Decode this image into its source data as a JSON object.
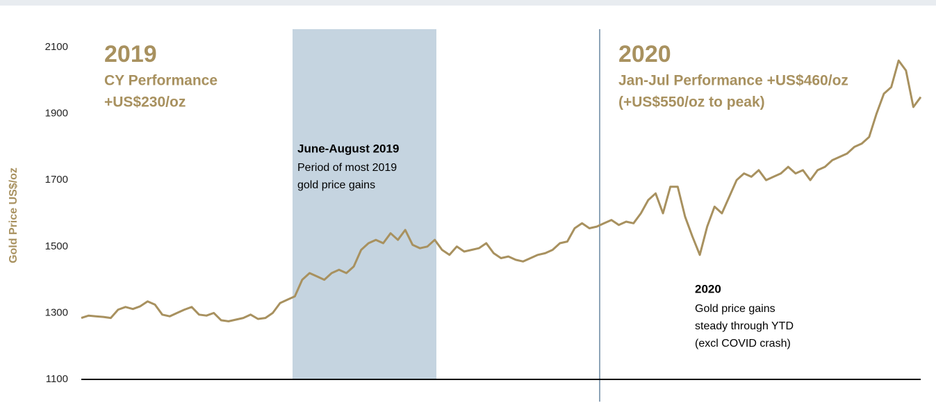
{
  "chart_data": {
    "type": "line",
    "ylabel": "Gold Price US$/oz",
    "ylim": [
      1100,
      2100
    ],
    "yticks": [
      1100,
      1300,
      1500,
      1700,
      1900,
      2100
    ],
    "color": "#a8915f",
    "values": [
      1285,
      1292,
      1290,
      1288,
      1285,
      1310,
      1318,
      1312,
      1320,
      1335,
      1325,
      1295,
      1290,
      1300,
      1310,
      1318,
      1295,
      1292,
      1300,
      1278,
      1275,
      1280,
      1285,
      1295,
      1282,
      1285,
      1300,
      1330,
      1340,
      1350,
      1400,
      1420,
      1410,
      1400,
      1420,
      1430,
      1420,
      1440,
      1490,
      1510,
      1520,
      1510,
      1540,
      1520,
      1550,
      1505,
      1495,
      1500,
      1520,
      1490,
      1475,
      1500,
      1485,
      1490,
      1495,
      1510,
      1480,
      1465,
      1470,
      1460,
      1455,
      1465,
      1475,
      1480,
      1490,
      1510,
      1515,
      1555,
      1570,
      1555,
      1560,
      1570,
      1580,
      1565,
      1575,
      1570,
      1600,
      1640,
      1660,
      1600,
      1680,
      1680,
      1590,
      1530,
      1475,
      1560,
      1620,
      1600,
      1650,
      1700,
      1720,
      1710,
      1730,
      1700,
      1710,
      1720,
      1740,
      1720,
      1730,
      1700,
      1730,
      1740,
      1760,
      1770,
      1780,
      1800,
      1810,
      1830,
      1900,
      1960,
      1980,
      2060,
      2030,
      1920,
      1950
    ],
    "annotations": {
      "y2019": {
        "title": "2019",
        "lines": [
          "CY Performance",
          "+US$230/oz"
        ]
      },
      "y2020": {
        "title": "2020",
        "lines": [
          "Jan-Jul Performance +US$460/oz",
          "(+US$550/oz to peak)"
        ]
      },
      "summer": {
        "title": "June-August 2019",
        "lines": [
          "Period of most 2019",
          "gold price gains"
        ]
      },
      "ytd": {
        "title": "2020",
        "lines": [
          "Gold price gains",
          "steady through YTD",
          "(excl COVID crash)"
        ]
      }
    }
  }
}
